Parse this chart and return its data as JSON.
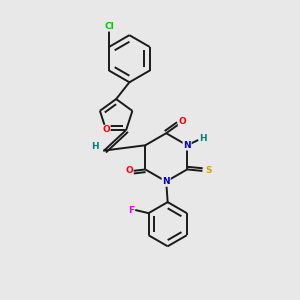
{
  "background_color": "#e8e8e8",
  "bond_color": "#1a1a1a",
  "atom_colors": {
    "O": "#ff0000",
    "N": "#0000cd",
    "S": "#ccaa00",
    "Cl": "#00cc00",
    "F": "#ee00ee",
    "H": "#008080",
    "C": "#1a1a1a"
  },
  "figsize": [
    3.0,
    3.0
  ],
  "dpi": 100
}
